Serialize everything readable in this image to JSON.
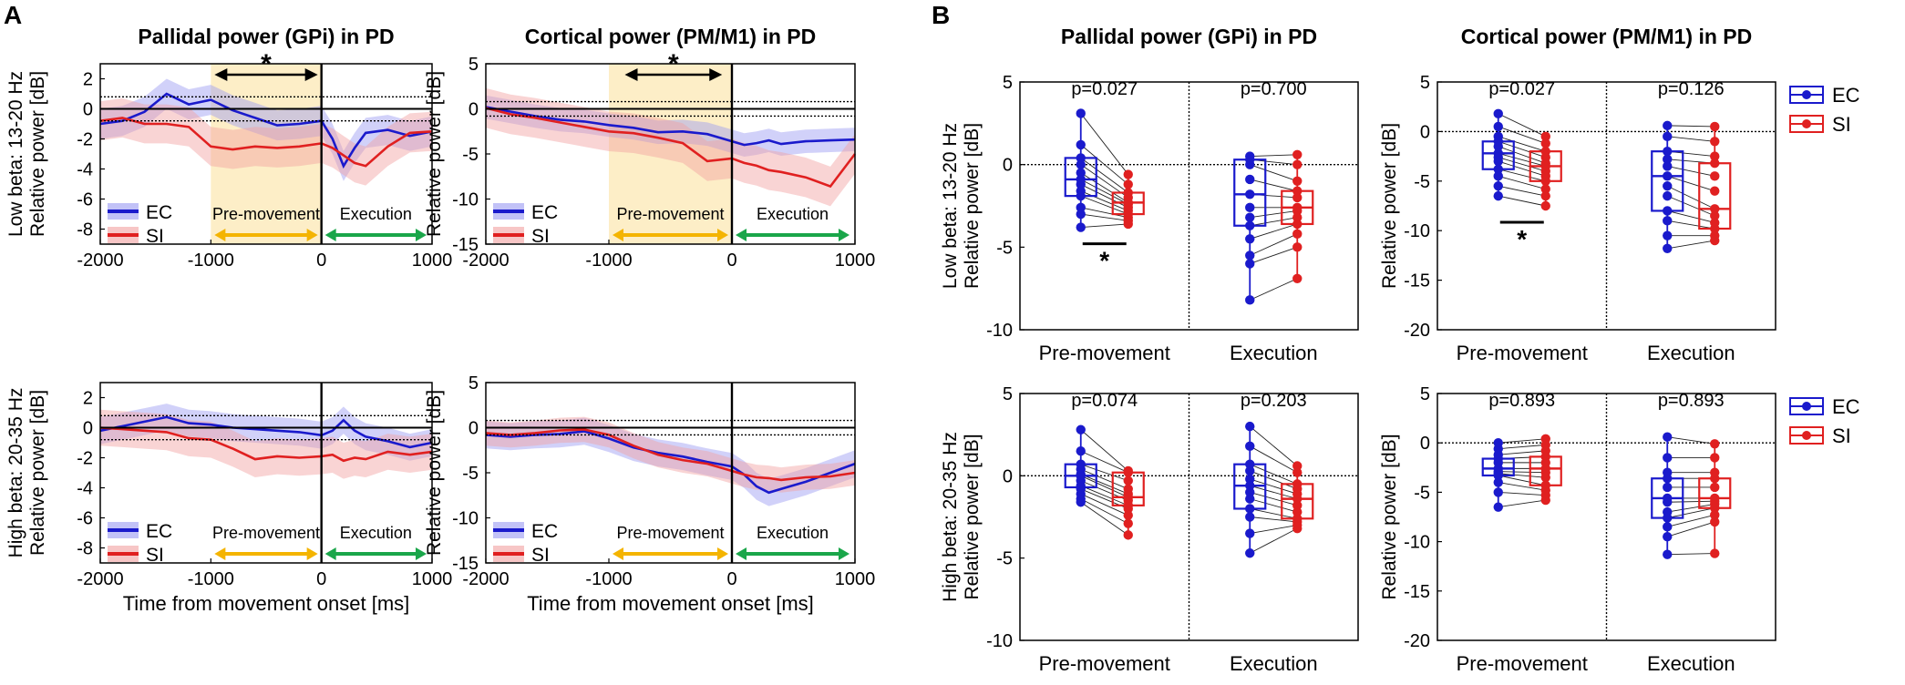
{
  "figure": {
    "panel_labels": [
      "A",
      "B"
    ],
    "legend": [
      "EC",
      "SI"
    ],
    "colors": {
      "EC": "#1a1acc",
      "SI": "#e02020",
      "EC_band": "#9a9af2",
      "SI_band": "#f2a0a0",
      "premove_shade": "#fdeec7",
      "arrow_premove": "#f4b400",
      "arrow_execution": "#1aa64a"
    },
    "phase_labels": {
      "premovement": "Pre-movement",
      "execution": "Execution"
    },
    "significance_marker": "*"
  },
  "chart_data": [
    {
      "id": "A-gpi-low",
      "type": "line",
      "title": "Pallidal power (GPi) in PD",
      "ylabel_band": "Low beta: 13-20 Hz",
      "ylabel": "Relative power [dB]",
      "xlabel": "",
      "xlim": [
        -2000,
        1000
      ],
      "ylim": [
        -9,
        3
      ],
      "xticks": [
        -2000,
        -1000,
        0,
        1000
      ],
      "yticks": [
        2,
        0,
        -2,
        -4,
        -6,
        -8
      ],
      "xtick_labels": [
        "-2000",
        "-1000",
        "0",
        "1000"
      ],
      "ytick_labels": [
        "2",
        "0",
        "-2",
        "-4",
        "-6",
        "-8"
      ],
      "threshold": 0.8,
      "shade": [
        -1000,
        0
      ],
      "sig_arrow": [
        -1000,
        0
      ],
      "x": [
        -2000,
        -1800,
        -1600,
        -1400,
        -1200,
        -1000,
        -800,
        -600,
        -400,
        -200,
        0,
        100,
        200,
        300,
        400,
        600,
        800,
        1000
      ],
      "series": [
        {
          "name": "EC",
          "values": [
            -1.0,
            -0.8,
            -0.2,
            1.0,
            0.3,
            0.6,
            -0.1,
            -0.6,
            -1.1,
            -1.0,
            -0.8,
            -2.0,
            -3.8,
            -2.6,
            -1.6,
            -1.4,
            -1.8,
            -1.5
          ],
          "sd": 1.0
        },
        {
          "name": "SI",
          "values": [
            -0.8,
            -0.6,
            -1.0,
            -1.0,
            -1.2,
            -2.5,
            -2.7,
            -2.5,
            -2.6,
            -2.5,
            -2.3,
            -2.6,
            -3.1,
            -3.6,
            -3.8,
            -2.5,
            -1.6,
            -1.5
          ],
          "sd": 1.3
        }
      ]
    },
    {
      "id": "A-pm-low",
      "type": "line",
      "title": "Cortical power (PM/M1) in PD",
      "ylabel": "Relative power [dB]",
      "xlabel": "",
      "xlim": [
        -2000,
        1000
      ],
      "ylim": [
        -15,
        5
      ],
      "xticks": [
        -2000,
        -1000,
        0,
        1000
      ],
      "yticks": [
        5,
        0,
        -5,
        -10,
        -15
      ],
      "xtick_labels": [
        "-2000",
        "-1000",
        "0",
        "1000"
      ],
      "ytick_labels": [
        "5",
        "0",
        "-5",
        "-10",
        "-15"
      ],
      "threshold": 0.8,
      "shade": [
        -1000,
        0
      ],
      "sig_arrow": [
        -900,
        -50
      ],
      "x": [
        -2000,
        -1800,
        -1600,
        -1400,
        -1200,
        -1000,
        -800,
        -600,
        -400,
        -200,
        0,
        100,
        200,
        300,
        400,
        600,
        800,
        1000
      ],
      "series": [
        {
          "name": "EC",
          "values": [
            0.2,
            -0.3,
            -0.8,
            -1.2,
            -1.4,
            -1.8,
            -2.1,
            -2.6,
            -2.5,
            -2.8,
            -3.6,
            -4.0,
            -3.8,
            -3.5,
            -3.9,
            -3.6,
            -3.5,
            -3.4
          ],
          "sd": 1.3
        },
        {
          "name": "SI",
          "values": [
            0.1,
            -0.6,
            -1.0,
            -1.5,
            -2.0,
            -2.5,
            -2.7,
            -3.2,
            -3.8,
            -5.8,
            -5.5,
            -6.0,
            -6.3,
            -6.8,
            -7.0,
            -7.6,
            -8.6,
            -5.0
          ],
          "sd": 2.2
        }
      ]
    },
    {
      "id": "A-gpi-high",
      "type": "line",
      "title": "",
      "ylabel_band": "High beta: 20-35 Hz",
      "ylabel": "Relative power [dB]",
      "xlabel": "Time from movement onset [ms]",
      "xlim": [
        -2000,
        1000
      ],
      "ylim": [
        -9,
        3
      ],
      "xticks": [
        -2000,
        -1000,
        0,
        1000
      ],
      "yticks": [
        2,
        0,
        -2,
        -4,
        -6,
        -8
      ],
      "xtick_labels": [
        "-2000",
        "-1000",
        "0",
        "1000"
      ],
      "ytick_labels": [
        "2",
        "0",
        "-2",
        "-4",
        "-6",
        "-8"
      ],
      "threshold": 0.8,
      "x": [
        -2000,
        -1800,
        -1600,
        -1400,
        -1200,
        -1000,
        -800,
        -600,
        -400,
        -200,
        0,
        100,
        200,
        300,
        400,
        600,
        800,
        1000
      ],
      "series": [
        {
          "name": "EC",
          "values": [
            -0.2,
            0.1,
            0.4,
            0.7,
            0.3,
            0.2,
            0.0,
            -0.1,
            -0.2,
            -0.3,
            -0.5,
            -0.2,
            0.5,
            -0.2,
            -0.6,
            -0.9,
            -1.3,
            -1.0
          ],
          "sd": 0.9
        },
        {
          "name": "SI",
          "values": [
            0.0,
            -0.1,
            -0.2,
            -0.3,
            -0.7,
            -0.8,
            -1.4,
            -2.1,
            -1.9,
            -2.0,
            -1.9,
            -1.8,
            -2.2,
            -2.0,
            -2.1,
            -1.6,
            -1.8,
            -1.6
          ],
          "sd": 1.2
        }
      ]
    },
    {
      "id": "A-pm-high",
      "type": "line",
      "title": "",
      "ylabel": "Relative power [dB]",
      "xlabel": "Time from movement onset [ms]",
      "xlim": [
        -2000,
        1000
      ],
      "ylim": [
        -15,
        5
      ],
      "xticks": [
        -2000,
        -1000,
        0,
        1000
      ],
      "yticks": [
        5,
        0,
        -5,
        -10,
        -15
      ],
      "xtick_labels": [
        "-2000",
        "-1000",
        "0",
        "1000"
      ],
      "ytick_labels": [
        "5",
        "0",
        "-5",
        "-10",
        "-15"
      ],
      "threshold": 0.8,
      "x": [
        -2000,
        -1800,
        -1600,
        -1400,
        -1200,
        -1000,
        -800,
        -600,
        -400,
        -200,
        0,
        100,
        200,
        300,
        400,
        600,
        800,
        1000
      ],
      "series": [
        {
          "name": "EC",
          "values": [
            -0.8,
            -1.0,
            -0.8,
            -0.7,
            -0.4,
            -1.2,
            -2.2,
            -2.8,
            -3.2,
            -3.8,
            -4.3,
            -5.2,
            -6.5,
            -7.2,
            -6.8,
            -6.0,
            -5.0,
            -4.0
          ],
          "sd": 1.5
        },
        {
          "name": "SI",
          "values": [
            -0.6,
            -0.8,
            -0.6,
            -0.3,
            -0.2,
            -0.8,
            -2.0,
            -3.0,
            -3.6,
            -4.0,
            -4.8,
            -5.2,
            -5.5,
            -5.6,
            -5.8,
            -5.5,
            -5.4,
            -5.0
          ],
          "sd": 1.4
        }
      ]
    },
    {
      "id": "B-gpi-low",
      "type": "box",
      "title": "Pallidal power (GPi) in PD",
      "ylabel_band": "Low beta: 13-20 Hz",
      "ylabel": "Relative power [dB]",
      "ylim": [
        -10,
        5
      ],
      "yticks": [
        5,
        0,
        -5,
        -10
      ],
      "ytick_labels": [
        "5",
        "0",
        "-5",
        "-10"
      ],
      "categories": [
        "Pre-movement",
        "Execution"
      ],
      "pvalues": [
        "p=0.027",
        "p=0.700"
      ],
      "significant": [
        true,
        false
      ],
      "boxes": [
        {
          "group": "Pre-movement",
          "series": "EC",
          "min": -3.8,
          "q1": -1.9,
          "median": -0.9,
          "q3": 0.4,
          "max": 3.1,
          "points": [
            3.1,
            1.2,
            0.4,
            0.0,
            -0.5,
            -0.9,
            -1.2,
            -1.6,
            -1.9,
            -2.6,
            -3.0,
            -3.8
          ]
        },
        {
          "group": "Pre-movement",
          "series": "SI",
          "min": -3.6,
          "q1": -3.0,
          "median": -2.3,
          "q3": -1.7,
          "max": -0.6,
          "points": [
            -0.6,
            -1.2,
            -1.7,
            -2.0,
            -2.3,
            -2.4,
            -2.6,
            -2.8,
            -3.0,
            -3.2,
            -3.4,
            -3.6
          ]
        },
        {
          "group": "Execution",
          "series": "EC",
          "min": -8.2,
          "q1": -3.7,
          "median": -1.8,
          "q3": 0.3,
          "max": 0.5,
          "points": [
            0.5,
            0.3,
            0.0,
            -0.9,
            -1.8,
            -2.6,
            -3.2,
            -3.7,
            -4.5,
            -5.5,
            -6.0,
            -8.2
          ]
        },
        {
          "group": "Execution",
          "series": "SI",
          "min": -6.9,
          "q1": -3.6,
          "median": -2.6,
          "q3": -1.6,
          "max": 0.6,
          "points": [
            0.6,
            0.0,
            -1.0,
            -1.6,
            -2.0,
            -2.6,
            -2.8,
            -3.2,
            -3.6,
            -4.2,
            -5.0,
            -6.9
          ]
        }
      ]
    },
    {
      "id": "B-pm-low",
      "type": "box",
      "title": "Cortical power (PM/M1) in PD",
      "ylabel": "Relative power [dB]",
      "ylim": [
        -20,
        5
      ],
      "yticks": [
        5,
        0,
        -5,
        -10,
        -15,
        -20
      ],
      "ytick_labels": [
        "5",
        "0",
        "-5",
        "-10",
        "-15",
        "-20"
      ],
      "categories": [
        "Pre-movement",
        "Execution"
      ],
      "pvalues": [
        "p=0.027",
        "p=0.126"
      ],
      "significant": [
        true,
        false
      ],
      "legend": [
        "EC",
        "SI"
      ],
      "boxes": [
        {
          "group": "Pre-movement",
          "series": "EC",
          "min": -6.5,
          "q1": -3.8,
          "median": -2.2,
          "q3": -1.0,
          "max": 1.8,
          "points": [
            1.8,
            0.5,
            -0.5,
            -1.0,
            -1.5,
            -2.2,
            -2.6,
            -3.0,
            -3.8,
            -4.5,
            -5.5,
            -6.5
          ]
        },
        {
          "group": "Pre-movement",
          "series": "SI",
          "min": -7.5,
          "q1": -5.0,
          "median": -3.5,
          "q3": -2.0,
          "max": -0.5,
          "points": [
            -0.5,
            -1.2,
            -2.0,
            -2.6,
            -3.2,
            -3.5,
            -4.0,
            -4.5,
            -5.0,
            -5.8,
            -6.5,
            -7.5
          ]
        },
        {
          "group": "Execution",
          "series": "EC",
          "min": -11.8,
          "q1": -8.0,
          "median": -4.5,
          "q3": -2.0,
          "max": 0.6,
          "points": [
            0.6,
            -0.5,
            -2.0,
            -2.8,
            -3.5,
            -4.5,
            -5.5,
            -6.5,
            -8.0,
            -9.0,
            -10.5,
            -11.8
          ]
        },
        {
          "group": "Execution",
          "series": "SI",
          "min": -11.0,
          "q1": -9.8,
          "median": -7.8,
          "q3": -3.2,
          "max": 0.5,
          "points": [
            0.5,
            -1.0,
            -2.5,
            -3.2,
            -4.5,
            -6.0,
            -7.8,
            -8.5,
            -9.2,
            -9.8,
            -10.5,
            -11.0
          ]
        }
      ]
    },
    {
      "id": "B-gpi-high",
      "type": "box",
      "title": "",
      "ylabel_band": "High beta: 20-35 Hz",
      "ylabel": "Relative power [dB]",
      "ylim": [
        -10,
        5
      ],
      "yticks": [
        5,
        0,
        -5,
        -10
      ],
      "ytick_labels": [
        "5",
        "0",
        "-5",
        "-10"
      ],
      "categories": [
        "Pre-movement",
        "Execution"
      ],
      "pvalues": [
        "p=0.074",
        "p=0.203"
      ],
      "significant": [
        false,
        false
      ],
      "boxes": [
        {
          "group": "Pre-movement",
          "series": "EC",
          "min": -1.6,
          "q1": -0.7,
          "median": 0.0,
          "q3": 0.7,
          "max": 2.8,
          "points": [
            2.8,
            1.5,
            0.7,
            0.4,
            0.1,
            0.0,
            -0.3,
            -0.6,
            -0.8,
            -1.1,
            -1.4,
            -1.6
          ]
        },
        {
          "group": "Pre-movement",
          "series": "SI",
          "min": -3.6,
          "q1": -1.8,
          "median": -1.3,
          "q3": 0.2,
          "max": 0.3,
          "points": [
            0.3,
            0.2,
            -0.3,
            -0.8,
            -1.1,
            -1.3,
            -1.5,
            -1.8,
            -2.0,
            -2.4,
            -2.9,
            -3.6
          ]
        },
        {
          "group": "Execution",
          "series": "EC",
          "min": -4.7,
          "q1": -2.0,
          "median": -0.6,
          "q3": 0.7,
          "max": 3.0,
          "points": [
            3.0,
            1.8,
            0.7,
            0.3,
            -0.2,
            -0.6,
            -1.0,
            -1.4,
            -2.0,
            -2.5,
            -3.5,
            -4.7
          ]
        },
        {
          "group": "Execution",
          "series": "SI",
          "min": -3.2,
          "q1": -2.6,
          "median": -1.4,
          "q3": -0.5,
          "max": 0.6,
          "points": [
            0.6,
            0.2,
            -0.5,
            -0.8,
            -1.1,
            -1.4,
            -1.8,
            -2.2,
            -2.6,
            -2.8,
            -3.0,
            -3.2
          ]
        }
      ]
    },
    {
      "id": "B-pm-high",
      "type": "box",
      "title": "",
      "ylabel": "Relative power [dB]",
      "ylim": [
        -20,
        5
      ],
      "yticks": [
        5,
        0,
        -5,
        -10,
        -15,
        -20
      ],
      "ytick_labels": [
        "5",
        "0",
        "-5",
        "-10",
        "-15",
        "-20"
      ],
      "categories": [
        "Pre-movement",
        "Execution"
      ],
      "pvalues": [
        "p=0.893",
        "p=0.893"
      ],
      "significant": [
        false,
        false
      ],
      "legend": [
        "EC",
        "SI"
      ],
      "boxes": [
        {
          "group": "Pre-movement",
          "series": "EC",
          "min": -6.5,
          "q1": -3.3,
          "median": -2.6,
          "q3": -1.6,
          "max": 0.0,
          "points": [
            0.0,
            -0.6,
            -1.2,
            -1.6,
            -2.0,
            -2.6,
            -2.9,
            -3.1,
            -3.3,
            -4.0,
            -5.0,
            -6.5
          ]
        },
        {
          "group": "Pre-movement",
          "series": "SI",
          "min": -5.8,
          "q1": -4.3,
          "median": -2.6,
          "q3": -1.4,
          "max": 0.4,
          "points": [
            0.4,
            -0.2,
            -0.8,
            -1.4,
            -2.0,
            -2.6,
            -3.0,
            -3.5,
            -4.3,
            -4.8,
            -5.3,
            -5.8
          ]
        },
        {
          "group": "Execution",
          "series": "EC",
          "min": -11.3,
          "q1": -7.6,
          "median": -5.6,
          "q3": -3.6,
          "max": 0.6,
          "points": [
            0.6,
            -1.5,
            -3.0,
            -3.6,
            -4.5,
            -5.6,
            -6.0,
            -7.0,
            -7.6,
            -8.5,
            -9.5,
            -11.3
          ]
        },
        {
          "group": "Execution",
          "series": "SI",
          "min": -11.2,
          "q1": -6.6,
          "median": -5.6,
          "q3": -3.6,
          "max": -0.1,
          "points": [
            -0.1,
            -1.5,
            -3.0,
            -3.6,
            -4.5,
            -5.6,
            -5.9,
            -6.2,
            -6.6,
            -7.3,
            -8.0,
            -11.2
          ]
        }
      ]
    }
  ]
}
